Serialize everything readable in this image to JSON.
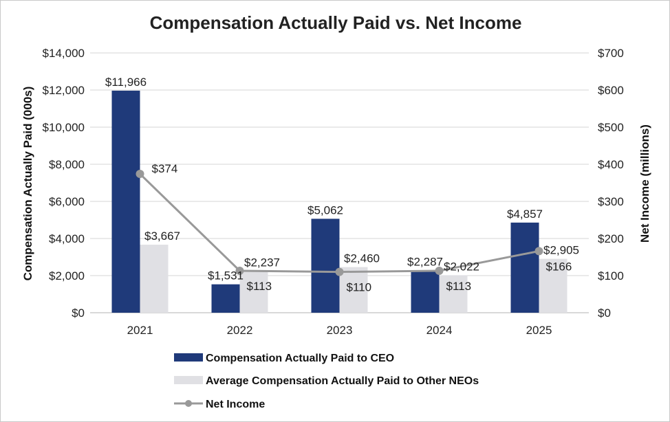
{
  "chart_data": {
    "type": "bar",
    "title": "Compensation Actually Paid vs. Net Income",
    "categories": [
      "2021",
      "2022",
      "2023",
      "2024",
      "2025"
    ],
    "y_left": {
      "label": "Compensation Actually Paid (000s)",
      "ylim": [
        0,
        14000
      ],
      "ticks": [
        "$0",
        "$2,000",
        "$4,000",
        "$6,000",
        "$8,000",
        "$10,000",
        "$12,000",
        "$14,000"
      ]
    },
    "y_right": {
      "label": "Net Income (millions)",
      "ylim": [
        0,
        700
      ],
      "ticks": [
        "$0",
        "$100",
        "$200",
        "$300",
        "$400",
        "$500",
        "$600",
        "$700"
      ]
    },
    "series": [
      {
        "name": "Compensation Actually Paid to CEO",
        "kind": "bar",
        "axis": "left",
        "color": "#1f3a7a",
        "values": [
          11966,
          1531,
          5062,
          2287,
          4857
        ],
        "labels": [
          "$11,966",
          "$1,531",
          "$5,062",
          "$2,287",
          "$4,857"
        ]
      },
      {
        "name": "Average Compensation Actually Paid to Other NEOs",
        "kind": "bar",
        "axis": "left",
        "color": "#e0e0e4",
        "values": [
          3667,
          2237,
          2460,
          2022,
          2905
        ],
        "labels": [
          "$3,667",
          "$2,237",
          "$2,460",
          "$2,022",
          "$2,905"
        ]
      },
      {
        "name": "Net Income",
        "kind": "line",
        "axis": "right",
        "color": "#999999",
        "values": [
          374,
          113,
          110,
          113,
          166
        ],
        "labels": [
          "$374",
          "$113",
          "$110",
          "$113",
          "$166"
        ]
      }
    ],
    "grid": true,
    "legend_position": "bottom"
  }
}
